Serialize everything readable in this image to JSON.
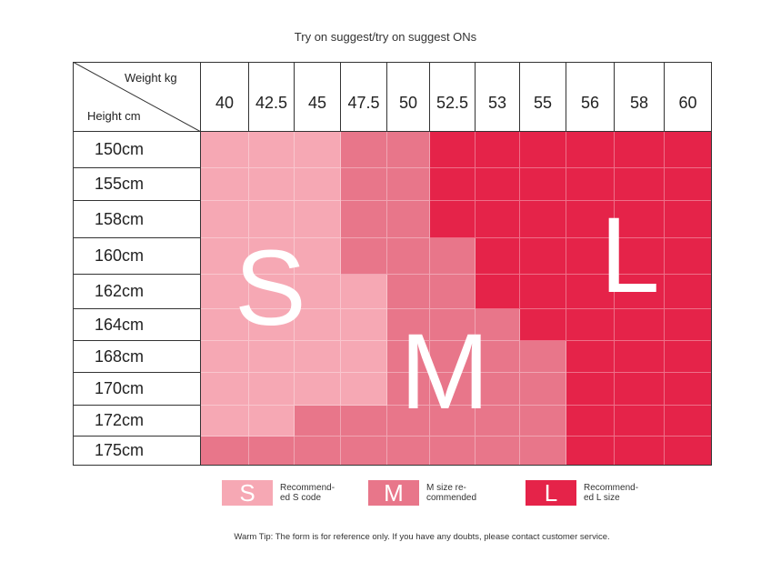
{
  "title": "Try on suggest/try on suggest ONs",
  "corner": {
    "weight_label": "Weight kg",
    "height_label": "Height cm"
  },
  "weights": [
    "40",
    "42.5",
    "45",
    "47.5",
    "50",
    "52.5",
    "53",
    "55",
    "56",
    "58",
    "60"
  ],
  "heights": [
    "150cm",
    "155cm",
    "158cm",
    "160cm",
    "162cm",
    "164cm",
    "168cm",
    "170cm",
    "172cm",
    "175cm"
  ],
  "sizes": [
    [
      "S",
      "S",
      "S",
      "M",
      "M",
      "L",
      "L",
      "L",
      "L",
      "L",
      "L"
    ],
    [
      "S",
      "S",
      "S",
      "M",
      "M",
      "L",
      "L",
      "L",
      "L",
      "L",
      "L"
    ],
    [
      "S",
      "S",
      "S",
      "M",
      "M",
      "L",
      "L",
      "L",
      "L",
      "L",
      "L"
    ],
    [
      "S",
      "S",
      "S",
      "M",
      "M",
      "M",
      "L",
      "L",
      "L",
      "L",
      "L"
    ],
    [
      "S",
      "S",
      "S",
      "S",
      "M",
      "M",
      "L",
      "L",
      "L",
      "L",
      "L"
    ],
    [
      "S",
      "S",
      "S",
      "S",
      "M",
      "M",
      "M",
      "L",
      "L",
      "L",
      "L"
    ],
    [
      "S",
      "S",
      "S",
      "S",
      "M",
      "M",
      "M",
      "M",
      "L",
      "L",
      "L"
    ],
    [
      "S",
      "S",
      "S",
      "S",
      "M",
      "M",
      "M",
      "M",
      "L",
      "L",
      "L"
    ],
    [
      "S",
      "S",
      "M",
      "M",
      "M",
      "M",
      "M",
      "M",
      "L",
      "L",
      "L"
    ],
    [
      "M",
      "M",
      "M",
      "M",
      "M",
      "M",
      "M",
      "M",
      "L",
      "L",
      "L"
    ]
  ],
  "colors": {
    "S": "#f6a8b4",
    "M": "#e8768a",
    "L": "#e52349"
  },
  "big_letters": {
    "S": "S",
    "M": "M",
    "L": "L"
  },
  "legend": [
    {
      "size": "S",
      "letter": "S",
      "text": "Recommend-\ned S code"
    },
    {
      "size": "M",
      "letter": "M",
      "text": "M size re-\ncommended"
    },
    {
      "size": "L",
      "letter": "L",
      "text": "Recommend-\ned L size"
    }
  ],
  "warm_tip": "Warm Tip: The form is for reference only. If you have any doubts, please contact customer service."
}
